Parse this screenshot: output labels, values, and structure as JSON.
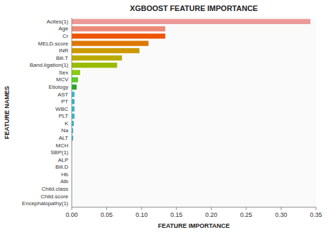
{
  "chart_data": {
    "type": "bar",
    "orientation": "horizontal",
    "title": "XGBOOST FEATURE IMPORTANCE",
    "xlabel": "FEATURE IMPORTANCE",
    "ylabel": "FEATURE NAMES",
    "categories": [
      "Encephalopathy(1)",
      "Child.score",
      "Child.class",
      "Alb",
      "Hb",
      "Bili.D",
      "ALP",
      "SBP(1)",
      "MCH",
      "ALT",
      "Na",
      "K",
      "PLT",
      "WBC",
      "PT",
      "AST",
      "Etiology",
      "MCV",
      "Sex",
      "Band.ligation(1)",
      "Bili.T",
      "INR",
      "MELD.score",
      "Cr",
      "Age",
      "Acites(1)"
    ],
    "values": [
      0.0,
      0.0,
      0.0,
      0.0,
      0.0,
      0.0,
      0.0,
      0.0,
      0.0,
      0.002,
      0.002,
      0.003,
      0.004,
      0.004,
      0.004,
      0.004,
      0.007,
      0.009,
      0.012,
      0.065,
      0.072,
      0.097,
      0.11,
      0.134,
      0.134,
      0.342
    ],
    "colors": [
      "#e0e0e0",
      "#e0e0e0",
      "#e0e0e0",
      "#e0e0e0",
      "#e0e0e0",
      "#e0e0e0",
      "#e0e0e0",
      "#e0e0e0",
      "#e0e0e0",
      "#30b8c8",
      "#30b8c8",
      "#30b8c8",
      "#30b8c8",
      "#30b8c8",
      "#30b8c8",
      "#30b8c8",
      "#22aa22",
      "#55cc22",
      "#88cc11",
      "#99bb00",
      "#bbaa00",
      "#cc9900",
      "#dd7700",
      "#ee5500",
      "#ee8877",
      "#ee9999"
    ],
    "xlim": [
      0.0,
      0.35
    ],
    "xticks": [
      {
        "value": 0.0,
        "label": "0.00"
      },
      0.05,
      {
        "value": 0.1,
        "label": "0.10"
      },
      0.15,
      {
        "value": 0.2,
        "label": "0.20"
      },
      0.25,
      {
        "value": 0.3,
        "label": "0.30"
      },
      0.35
    ],
    "grid": false
  }
}
